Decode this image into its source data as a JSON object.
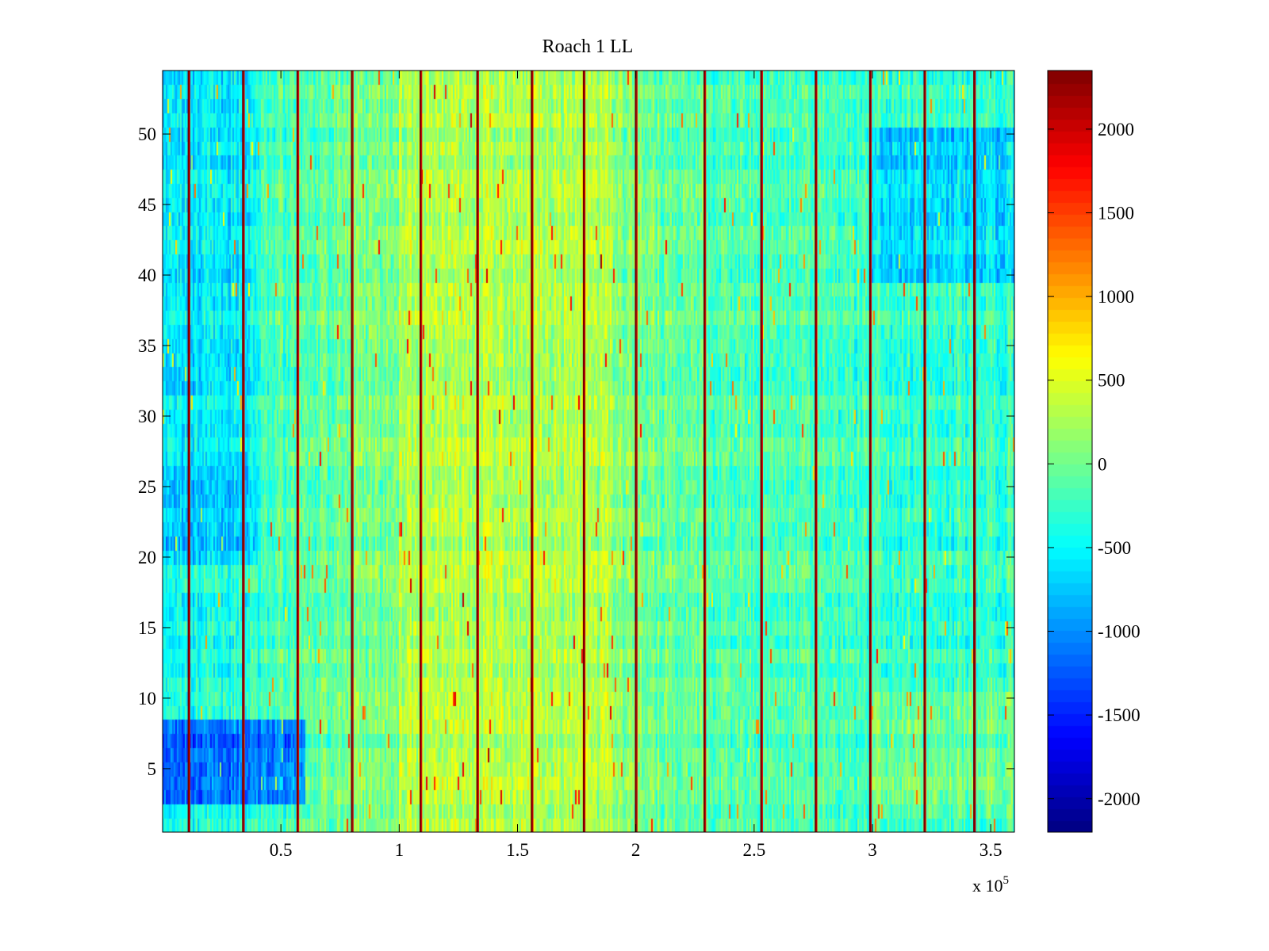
{
  "chart_data": {
    "type": "heatmap",
    "title": "Roach 1 LL",
    "xlabel": "",
    "ylabel": "",
    "x_exponent_label": "x 10",
    "x_exponent_power": "5",
    "xlim": [
      0,
      3.6
    ],
    "ylim": [
      0.5,
      54.5
    ],
    "xticks": [
      0.5,
      1,
      1.5,
      2,
      2.5,
      3,
      3.5
    ],
    "xtick_labels": [
      "0.5",
      "1",
      "1.5",
      "2",
      "2.5",
      "3",
      "3.5"
    ],
    "yticks": [
      5,
      10,
      15,
      20,
      25,
      30,
      35,
      40,
      45,
      50
    ],
    "ytick_labels": [
      "5",
      "10",
      "15",
      "20",
      "25",
      "30",
      "35",
      "40",
      "45",
      "50"
    ],
    "rows": 54,
    "colormap": "jet",
    "colorbar": {
      "range": [
        -2200,
        2350
      ],
      "ticks": [
        2000,
        1500,
        1000,
        500,
        0,
        -500,
        -1000,
        -1500,
        -2000
      ],
      "tick_labels": [
        "2000",
        "1500",
        "1000",
        "500",
        "0",
        "-500",
        "-1000",
        "-1500",
        "-2000"
      ]
    },
    "high_value_column_lines_x": [
      0.11,
      0.34,
      0.57,
      0.8,
      1.09,
      1.33,
      1.56,
      1.78,
      2.0,
      2.29,
      2.53,
      2.76,
      2.99,
      3.22,
      3.43
    ],
    "regional_means": [
      {
        "x_range": [
          0.0,
          0.6
        ],
        "y_range": [
          3,
          8
        ],
        "value": -1600
      },
      {
        "x_range": [
          0.0,
          0.4
        ],
        "y_range": [
          20,
          27
        ],
        "value": -900
      },
      {
        "x_range": [
          0.0,
          0.4
        ],
        "y_range": [
          27,
          54
        ],
        "value": -650
      },
      {
        "x_range": [
          1.0,
          1.9
        ],
        "y_range": [
          1,
          54
        ],
        "value": 350
      },
      {
        "x_range": [
          3.0,
          3.6
        ],
        "y_range": [
          40,
          50
        ],
        "value": -850
      },
      {
        "x_range": [
          3.0,
          3.6
        ],
        "y_range": [
          2,
          10
        ],
        "value": 100
      }
    ]
  }
}
